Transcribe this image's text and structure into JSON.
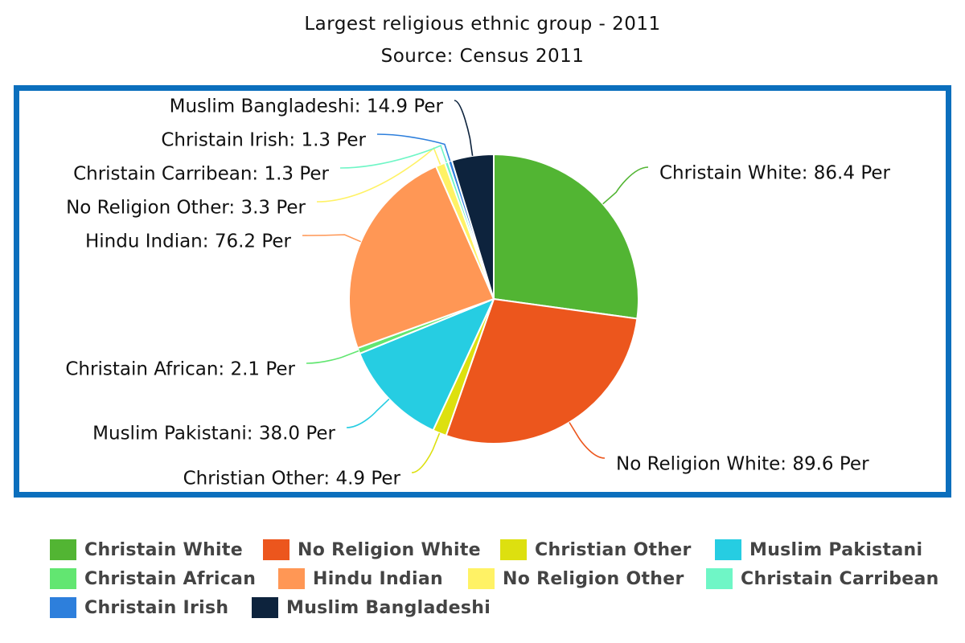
{
  "header": {
    "title": "Largest religious ethnic group - 2011",
    "subtitle": "Source: Census 2011"
  },
  "chart_data": {
    "type": "pie",
    "title": "Largest religious ethnic group - 2011",
    "subtitle": "Source: Census 2011",
    "start_angle": "12 o'clock, clockwise",
    "legend_position": "bottom",
    "slices": [
      {
        "name": "Christain White",
        "value": 86.4,
        "label": "Christain White: 86.4 Per",
        "color": "#52b533"
      },
      {
        "name": "No Religion White",
        "value": 89.6,
        "label": "No Religion White: 89.6 Per",
        "color": "#ec561d"
      },
      {
        "name": "Christian Other",
        "value": 4.9,
        "label": "Christian Other: 4.9 Per",
        "color": "#dde00f"
      },
      {
        "name": "Muslim Pakistani",
        "value": 38.0,
        "label": "Muslim Pakistani: 38.0 Per",
        "color": "#26cde2"
      },
      {
        "name": "Christain African",
        "value": 2.1,
        "label": "Christain African: 2.1 Per",
        "color": "#62e671"
      },
      {
        "name": "Hindu Indian",
        "value": 76.2,
        "label": "Hindu Indian: 76.2 Per",
        "color": "#ff9755"
      },
      {
        "name": "No Religion Other",
        "value": 3.3,
        "label": "No Religion Other: 3.3 Per",
        "color": "#fff265"
      },
      {
        "name": "Christain Carribean",
        "value": 1.3,
        "label": "Christain Carribean: 1.3 Per",
        "color": "#6ff6c6"
      },
      {
        "name": "Christain Irish",
        "value": 1.3,
        "label": "Christain Irish: 1.3 Per",
        "color": "#2d7fdc"
      },
      {
        "name": "Muslim Bangladeshi",
        "value": 14.9,
        "label": "Muslim Bangladeshi: 14.9 Per",
        "color": "#0d233d"
      }
    ]
  },
  "legend": {
    "items": [
      {
        "label": "Christain White",
        "color": "#52b533"
      },
      {
        "label": "No Religion White",
        "color": "#ec561d"
      },
      {
        "label": "Christian Other",
        "color": "#dde00f"
      },
      {
        "label": "Muslim Pakistani",
        "color": "#26cde2"
      },
      {
        "label": "Christain African",
        "color": "#62e671"
      },
      {
        "label": "Hindu Indian",
        "color": "#ff9755"
      },
      {
        "label": "No Religion Other",
        "color": "#fff265"
      },
      {
        "label": "Christain Carribean",
        "color": "#6ff6c6"
      },
      {
        "label": "Christain Irish",
        "color": "#2d7fdc"
      },
      {
        "label": "Muslim Bangladeshi",
        "color": "#0d233d"
      }
    ]
  },
  "colors": {
    "frame": "#0b6fbd"
  }
}
